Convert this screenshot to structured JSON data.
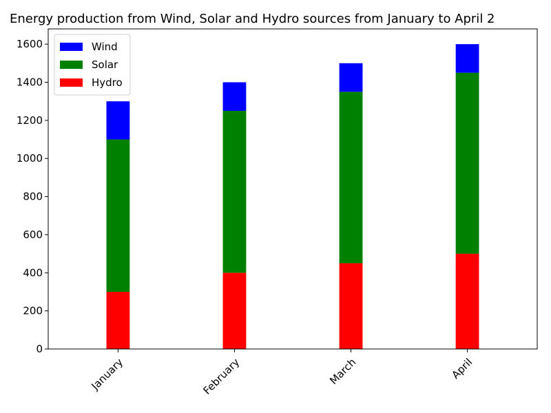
{
  "chart_data": {
    "type": "bar",
    "stacked": true,
    "title": "Energy production from Wind, Solar and Hydro sources from January to April 2",
    "xlabel": "",
    "ylabel": "",
    "categories": [
      "January",
      "February",
      "March",
      "April"
    ],
    "series": [
      {
        "name": "Hydro",
        "color": "#ff0000",
        "values": [
          300,
          400,
          450,
          500
        ]
      },
      {
        "name": "Solar",
        "color": "#008000",
        "values": [
          800,
          850,
          900,
          950
        ]
      },
      {
        "name": "Wind",
        "color": "#0000ff",
        "values": [
          200,
          150,
          150,
          150
        ]
      }
    ],
    "legend_order": [
      "Wind",
      "Solar",
      "Hydro"
    ],
    "legend_position": "top-left",
    "ylim": [
      0,
      1680
    ],
    "yticks": [
      0,
      200,
      400,
      600,
      800,
      1000,
      1200,
      1400,
      1600
    ],
    "xtick_rotation": 45,
    "grid": false
  }
}
